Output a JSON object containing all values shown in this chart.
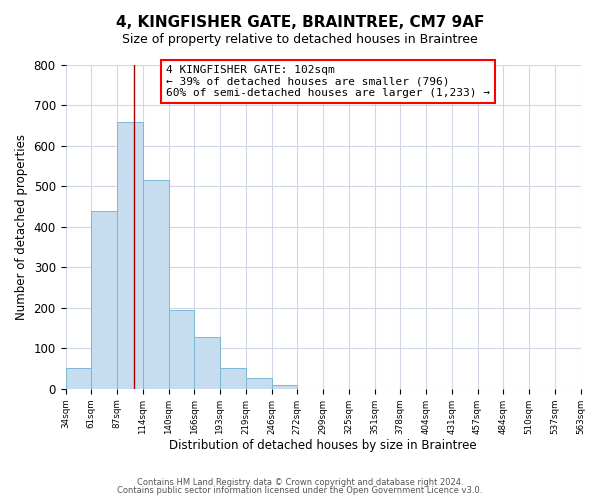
{
  "title": "4, KINGFISHER GATE, BRAINTREE, CM7 9AF",
  "subtitle": "Size of property relative to detached houses in Braintree",
  "bar_values": [
    50,
    440,
    660,
    515,
    195,
    128,
    50,
    27,
    8,
    0,
    0,
    0,
    0,
    0,
    0,
    0,
    0,
    0,
    0,
    0
  ],
  "bin_labels": [
    "34sqm",
    "61sqm",
    "87sqm",
    "114sqm",
    "140sqm",
    "166sqm",
    "193sqm",
    "219sqm",
    "246sqm",
    "272sqm",
    "299sqm",
    "325sqm",
    "351sqm",
    "378sqm",
    "404sqm",
    "431sqm",
    "457sqm",
    "484sqm",
    "510sqm",
    "537sqm",
    "563sqm"
  ],
  "bar_color": "#c5ddef",
  "bar_edge_color": "#7db8d8",
  "ylim": [
    0,
    800
  ],
  "yticks": [
    0,
    100,
    200,
    300,
    400,
    500,
    600,
    700,
    800
  ],
  "ylabel": "Number of detached properties",
  "xlabel": "Distribution of detached houses by size in Braintree",
  "property_line_x": 2.647,
  "annotation_line1": "4 KINGFISHER GATE: 102sqm",
  "annotation_line2": "← 39% of detached houses are smaller (796)",
  "annotation_line3": "60% of semi-detached houses are larger (1,233) →",
  "footer_line1": "Contains HM Land Registry data © Crown copyright and database right 2024.",
  "footer_line2": "Contains public sector information licensed under the Open Government Licence v3.0.",
  "background_color": "#ffffff",
  "grid_color": "#d0d8e8"
}
